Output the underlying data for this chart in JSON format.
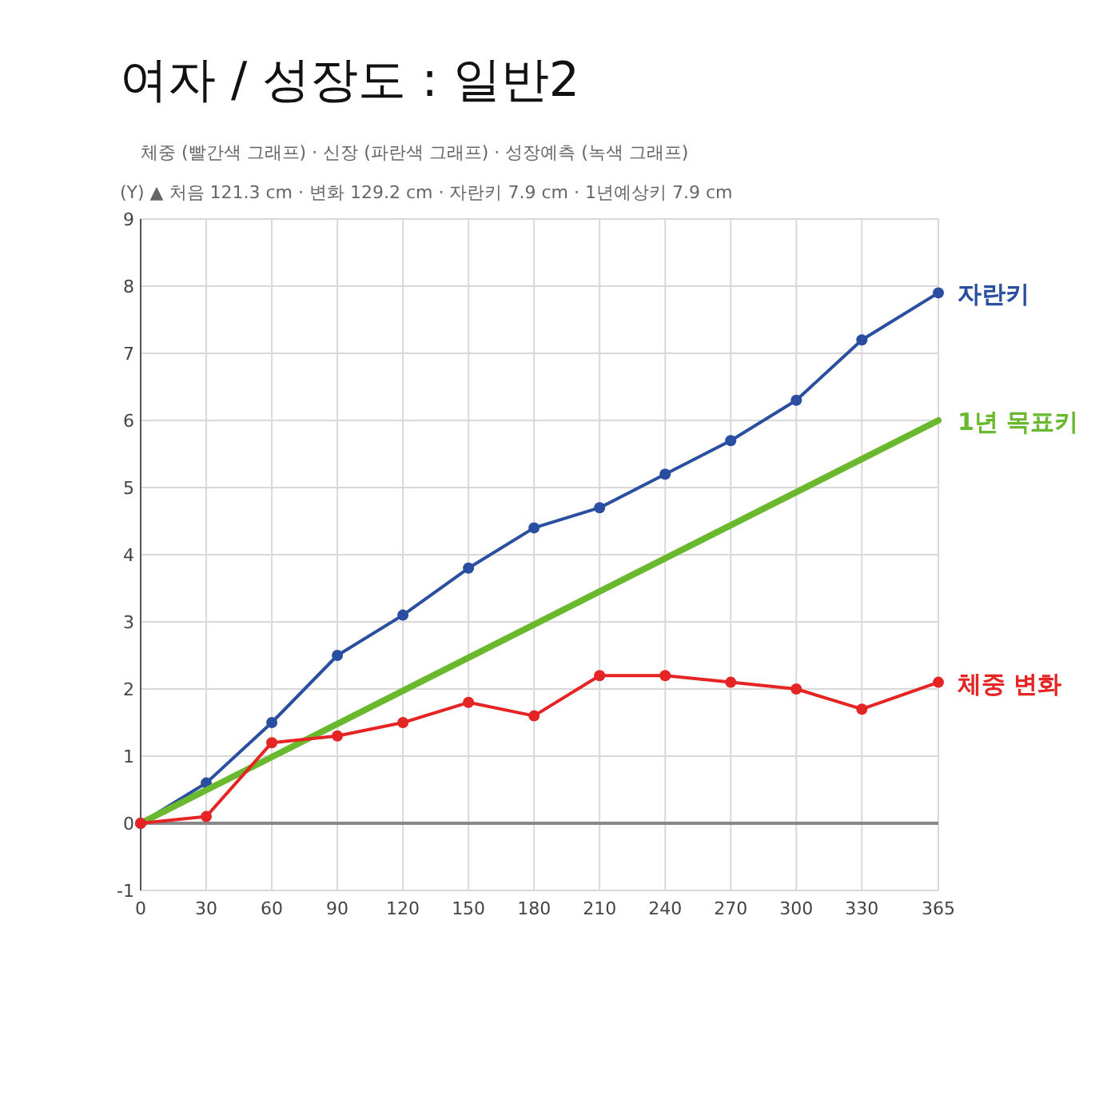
{
  "chart_data": {
    "type": "line",
    "title": "여자 / 성장도 : 일반2",
    "annotations": [
      "체중 (빨간색 그래프) · 신장 (파란색 그래프) · 성장예측 (녹색 그래프)",
      "(Y) ▲ 처음 121.3 cm · 변화 129.2 cm · 자란키 7.9 cm · 1년예상키 7.9 cm"
    ],
    "x": [
      0,
      30,
      60,
      90,
      120,
      150,
      180,
      210,
      240,
      270,
      300,
      330,
      365
    ],
    "series": [
      {
        "name": "자란키",
        "color": "#2a4fa0",
        "marker": "circle",
        "values": [
          0,
          0.6,
          1.5,
          2.5,
          3.1,
          3.8,
          4.4,
          4.7,
          5.2,
          5.7,
          6.3,
          7.2,
          7.9
        ]
      },
      {
        "name": "1년 목표키",
        "color": "#6ab82e",
        "marker": "none",
        "x": [
          0,
          365
        ],
        "values": [
          0,
          6
        ]
      },
      {
        "name": "체중 변화",
        "color": "#e52424",
        "marker": "circle",
        "values": [
          0,
          0.1,
          1.2,
          1.3,
          1.5,
          1.8,
          1.6,
          2.2,
          2.2,
          2.1,
          2.0,
          1.7,
          2.1
        ]
      }
    ],
    "xlim": [
      0,
      365
    ],
    "xticks": [
      0,
      30,
      60,
      90,
      120,
      150,
      180,
      210,
      240,
      270,
      300,
      330,
      365
    ],
    "ylim": [
      -1,
      9
    ],
    "yticks": [
      -1,
      0,
      1,
      2,
      3,
      4,
      5,
      6,
      7,
      8,
      9
    ],
    "ref_lines": [
      {
        "axis": "y",
        "value": 0,
        "color": "#888888"
      }
    ],
    "grid": true
  }
}
